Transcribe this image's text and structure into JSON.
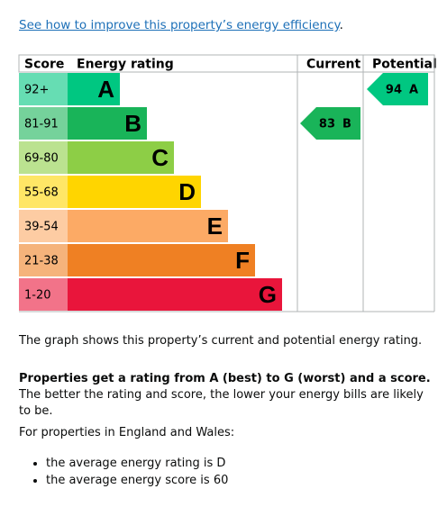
{
  "link": {
    "text": "See how to improve this property’s energy efficiency",
    "suffix": "."
  },
  "table": {
    "headers": [
      "Score",
      "Energy rating",
      "Current",
      "Potential"
    ],
    "bands": [
      {
        "score": "92+",
        "rating": "A",
        "color": "#00c781"
      },
      {
        "score": "81-91",
        "rating": "B",
        "color": "#19b459"
      },
      {
        "score": "69-80",
        "rating": "C",
        "color": "#8dce46"
      },
      {
        "score": "55-68",
        "rating": "D",
        "color": "#ffd500"
      },
      {
        "score": "39-54",
        "rating": "E",
        "color": "#fcaa65"
      },
      {
        "score": "21-38",
        "rating": "F",
        "color": "#ef8023"
      },
      {
        "score": "1-20",
        "rating": "G",
        "color": "#e9153b"
      }
    ],
    "current": {
      "score": 83,
      "rating": "B"
    },
    "potential": {
      "score": 94,
      "rating": "A"
    }
  },
  "paragraphs": {
    "graph": "The graph shows this property’s current and potential energy rating.",
    "rating_bold": "Properties get a rating from A (best) to G (worst) and a score.",
    "rating_rest": "The better the rating and score, the lower your energy bills are likely to be.",
    "region": "For properties in England and Wales:"
  },
  "list": [
    "the average energy rating is D",
    "the average energy score is 60"
  ]
}
